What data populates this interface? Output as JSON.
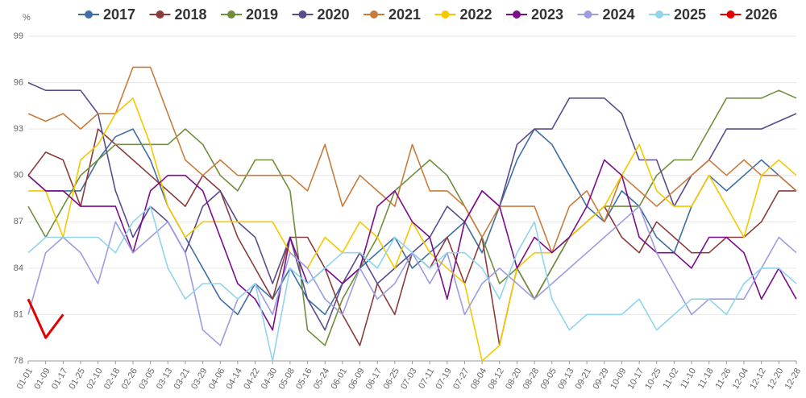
{
  "chart_data": {
    "type": "line",
    "unit": "%",
    "categories": [
      "01-01",
      "01-09",
      "01-17",
      "01-25",
      "02-10",
      "02-18",
      "02-26",
      "03-05",
      "03-13",
      "03-21",
      "03-29",
      "04-06",
      "04-14",
      "04-22",
      "04-30",
      "05-08",
      "05-16",
      "05-24",
      "06-01",
      "06-09",
      "06-17",
      "06-25",
      "07-03",
      "07-11",
      "07-19",
      "07-27",
      "08-04",
      "08-12",
      "08-20",
      "08-28",
      "09-05",
      "09-13",
      "09-21",
      "09-29",
      "10-09",
      "10-17",
      "10-25",
      "11-02",
      "11-10",
      "11-18",
      "11-26",
      "12-04",
      "12-12",
      "12-20",
      "12-28"
    ],
    "ylim": [
      78,
      99
    ],
    "yticks": [
      78,
      81,
      84,
      87,
      90,
      93,
      96,
      99
    ],
    "grid": true,
    "legend": "top",
    "series": [
      {
        "name": "2017",
        "color": "#3e6ea3",
        "values": [
          90,
          89,
          89,
          89,
          91,
          92.5,
          93,
          91,
          88,
          86,
          84,
          82,
          81,
          83,
          82,
          84,
          82,
          81,
          83,
          84,
          85,
          86,
          84,
          85,
          86,
          87,
          85,
          88,
          91,
          93,
          92,
          90,
          88,
          87,
          89,
          88,
          86,
          85,
          88,
          90,
          89,
          90,
          91,
          90,
          89
        ]
      },
      {
        "name": "2018",
        "color": "#8b3b3b",
        "values": [
          90,
          91.5,
          91,
          88,
          93,
          92,
          91,
          90,
          89,
          88,
          90,
          89,
          86,
          84,
          82,
          86,
          86,
          84,
          81,
          79,
          83,
          81,
          85,
          84,
          86,
          83,
          86,
          79,
          84,
          82,
          84,
          86,
          87,
          88,
          86,
          85,
          87,
          86,
          85,
          85,
          86,
          86,
          87,
          89,
          89
        ]
      },
      {
        "name": "2019",
        "color": "#6f8f3c",
        "values": [
          88,
          86,
          88,
          90,
          91,
          92,
          92,
          92,
          92,
          93,
          92,
          90,
          89,
          91,
          91,
          89,
          80,
          79,
          82,
          84,
          86,
          89,
          90,
          91,
          90,
          88,
          86,
          83,
          84,
          82,
          84,
          86,
          87,
          88,
          88,
          88,
          90,
          91,
          91,
          93,
          95,
          95,
          95,
          95.5,
          95
        ]
      },
      {
        "name": "2020",
        "color": "#5b4b8a",
        "values": [
          96,
          95.5,
          95.5,
          95.5,
          94,
          89,
          86,
          88,
          87,
          85,
          88,
          89,
          87,
          86,
          83,
          86,
          82,
          80,
          83,
          85,
          83,
          84,
          85,
          86,
          88,
          87,
          89,
          88,
          92,
          93,
          93,
          95,
          95,
          95,
          94,
          91,
          91,
          88,
          90,
          91,
          93,
          93,
          93,
          93.5,
          94
        ]
      },
      {
        "name": "2021",
        "color": "#c97b3c",
        "values": [
          94,
          93.5,
          94,
          93,
          94,
          94,
          97,
          97,
          94,
          91,
          90,
          91,
          90,
          90,
          90,
          90,
          89,
          92,
          88,
          90,
          89,
          88,
          92,
          89,
          89,
          88,
          86,
          88,
          88,
          88,
          85,
          88,
          89,
          87,
          90,
          89,
          88,
          89,
          90,
          91,
          90,
          91,
          90,
          90,
          89
        ]
      },
      {
        "name": "2022",
        "color": "#f4c900",
        "values": [
          89,
          89,
          86,
          91,
          92,
          94,
          95,
          92,
          88,
          86,
          87,
          87,
          87,
          87,
          87,
          85,
          84,
          86,
          85,
          87,
          86,
          84,
          87,
          85,
          84,
          83,
          78,
          79,
          84,
          85,
          85,
          86,
          87,
          88,
          90,
          92,
          89,
          88,
          88,
          90,
          88,
          86,
          90,
          91,
          90
        ]
      },
      {
        "name": "2023",
        "color": "#7b0c8c",
        "values": [
          90,
          89,
          89,
          88,
          88,
          88,
          85,
          89,
          90,
          90,
          89,
          86,
          83,
          82,
          80,
          86,
          83,
          84,
          83,
          84,
          88,
          89,
          87,
          86,
          82,
          87,
          89,
          88,
          84,
          86,
          85,
          86,
          88,
          91,
          90,
          86,
          85,
          85,
          84,
          86,
          86,
          85,
          82,
          84,
          82
        ]
      },
      {
        "name": "2024",
        "color": "#9c9ce2",
        "values": [
          81,
          85,
          86,
          85,
          83,
          87,
          85,
          86,
          87,
          85,
          80,
          79,
          82,
          83,
          81,
          85,
          84,
          82,
          81,
          84,
          82,
          83,
          85,
          83,
          85,
          81,
          83,
          84,
          83,
          82,
          83,
          84,
          85,
          86,
          87,
          88,
          85,
          83,
          81,
          82,
          82,
          82,
          84,
          86,
          85
        ]
      },
      {
        "name": "2025",
        "color": "#90d4f0",
        "values": [
          85,
          86,
          86,
          86,
          86,
          85,
          87,
          88,
          84,
          82,
          83,
          83,
          82,
          83,
          78,
          84,
          83,
          84,
          85,
          85,
          84,
          86,
          85,
          84,
          85,
          85,
          84,
          82,
          85,
          87,
          82,
          80,
          81,
          81,
          81,
          82,
          80,
          81,
          82,
          82,
          81,
          83,
          84,
          84,
          83
        ]
      },
      {
        "name": "2026",
        "color": "#e00000",
        "values": [
          82,
          79.5,
          81,
          null,
          null,
          null,
          null,
          null,
          null,
          null,
          null,
          null,
          null,
          null,
          null,
          null,
          null,
          null,
          null,
          null,
          null,
          null,
          null,
          null,
          null,
          null,
          null,
          null,
          null,
          null,
          null,
          null,
          null,
          null,
          null,
          null,
          null,
          null,
          null,
          null,
          null,
          null,
          null,
          null,
          null
        ]
      }
    ]
  }
}
